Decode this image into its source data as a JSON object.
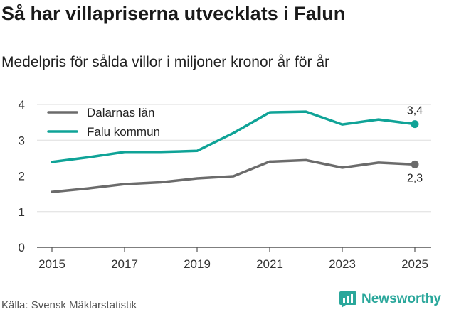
{
  "header": {
    "title": "Så har villapriserna utvecklats i Falun",
    "subtitle": "Medelpris för sålda villor i miljoner kronor år för år"
  },
  "footer": {
    "source": "Källa: Svensk Mäklarstatistik",
    "brand": "Newsworthy",
    "brand_icon": "newsworthy-logo-icon"
  },
  "chart_data": {
    "type": "line",
    "title": "",
    "xlabel": "",
    "ylabel": "",
    "x": [
      2015,
      2016,
      2017,
      2018,
      2019,
      2020,
      2021,
      2022,
      2023,
      2024,
      2025
    ],
    "xticks": [
      "2015",
      "2017",
      "2019",
      "2021",
      "2023",
      "2025"
    ],
    "yticks": [
      "0",
      "1",
      "2",
      "3",
      "4"
    ],
    "ylim": [
      0,
      4
    ],
    "grid": true,
    "legend_position": "top-left",
    "series": [
      {
        "name": "Dalarnas län",
        "color": "#6b6b6b",
        "values": [
          1.55,
          1.65,
          1.77,
          1.82,
          1.93,
          1.99,
          2.4,
          2.44,
          2.23,
          2.37,
          2.32
        ],
        "end_label": "2,3"
      },
      {
        "name": "Falu kommun",
        "color": "#0fa397",
        "values": [
          2.39,
          2.52,
          2.67,
          2.67,
          2.7,
          3.2,
          3.78,
          3.8,
          3.44,
          3.58,
          3.45
        ],
        "end_label": "3,4"
      }
    ]
  }
}
